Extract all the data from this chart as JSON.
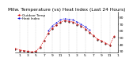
{
  "title": "Milw. Temperature (vs) Heat Index (Last 24 Hours)",
  "legend_labels": [
    "Outdoor Temp",
    "Heat Index"
  ],
  "background_color": "#ffffff",
  "plot_bg_color": "#ffffff",
  "grid_color": "#888888",
  "ylim": [
    28,
    88
  ],
  "xlim": [
    0,
    25
  ],
  "yticks": [
    30,
    40,
    50,
    60,
    70,
    80
  ],
  "ytick_labels": [
    "30",
    "40",
    "50",
    "60",
    "70",
    "80"
  ],
  "xtick_positions": [
    1,
    3,
    5,
    7,
    9,
    11,
    13,
    15,
    17,
    19,
    21,
    23,
    25
  ],
  "xtick_labels": [
    "1",
    "3",
    "5",
    "7",
    "9",
    "11",
    "1",
    "3",
    "5",
    "7",
    "9",
    "11",
    "1"
  ],
  "x_temp": [
    0,
    1,
    2,
    3,
    4,
    5,
    6,
    7,
    8,
    9,
    10,
    11,
    12,
    13,
    14,
    15,
    16,
    17,
    18,
    19,
    20,
    21,
    22,
    23,
    24
  ],
  "y_temp": [
    34,
    32,
    31,
    30,
    29,
    30,
    36,
    46,
    57,
    64,
    69,
    73,
    75,
    74,
    73,
    70,
    67,
    63,
    58,
    53,
    48,
    45,
    42,
    39,
    52
  ],
  "x_heat": [
    8,
    9,
    10,
    11,
    12,
    13,
    14,
    15,
    16,
    17,
    18
  ],
  "y_heat": [
    60,
    67,
    72,
    76,
    78,
    77,
    76,
    73,
    70,
    66,
    61
  ],
  "x_black": [
    0,
    1,
    2,
    3,
    4,
    5,
    6,
    7,
    8,
    9,
    10,
    11,
    12,
    13,
    14,
    15,
    16,
    17,
    18,
    19,
    20,
    21,
    22,
    23,
    24
  ],
  "y_black": [
    33,
    31,
    30,
    29,
    28,
    29,
    35,
    45,
    56,
    63,
    68,
    72,
    74,
    73,
    72,
    69,
    66,
    62,
    57,
    52,
    47,
    44,
    41,
    38,
    51
  ],
  "title_fontsize": 4.2,
  "tick_fontsize": 3.2,
  "legend_fontsize": 3.0,
  "marker_size": 1.0,
  "line_width": 0.5
}
